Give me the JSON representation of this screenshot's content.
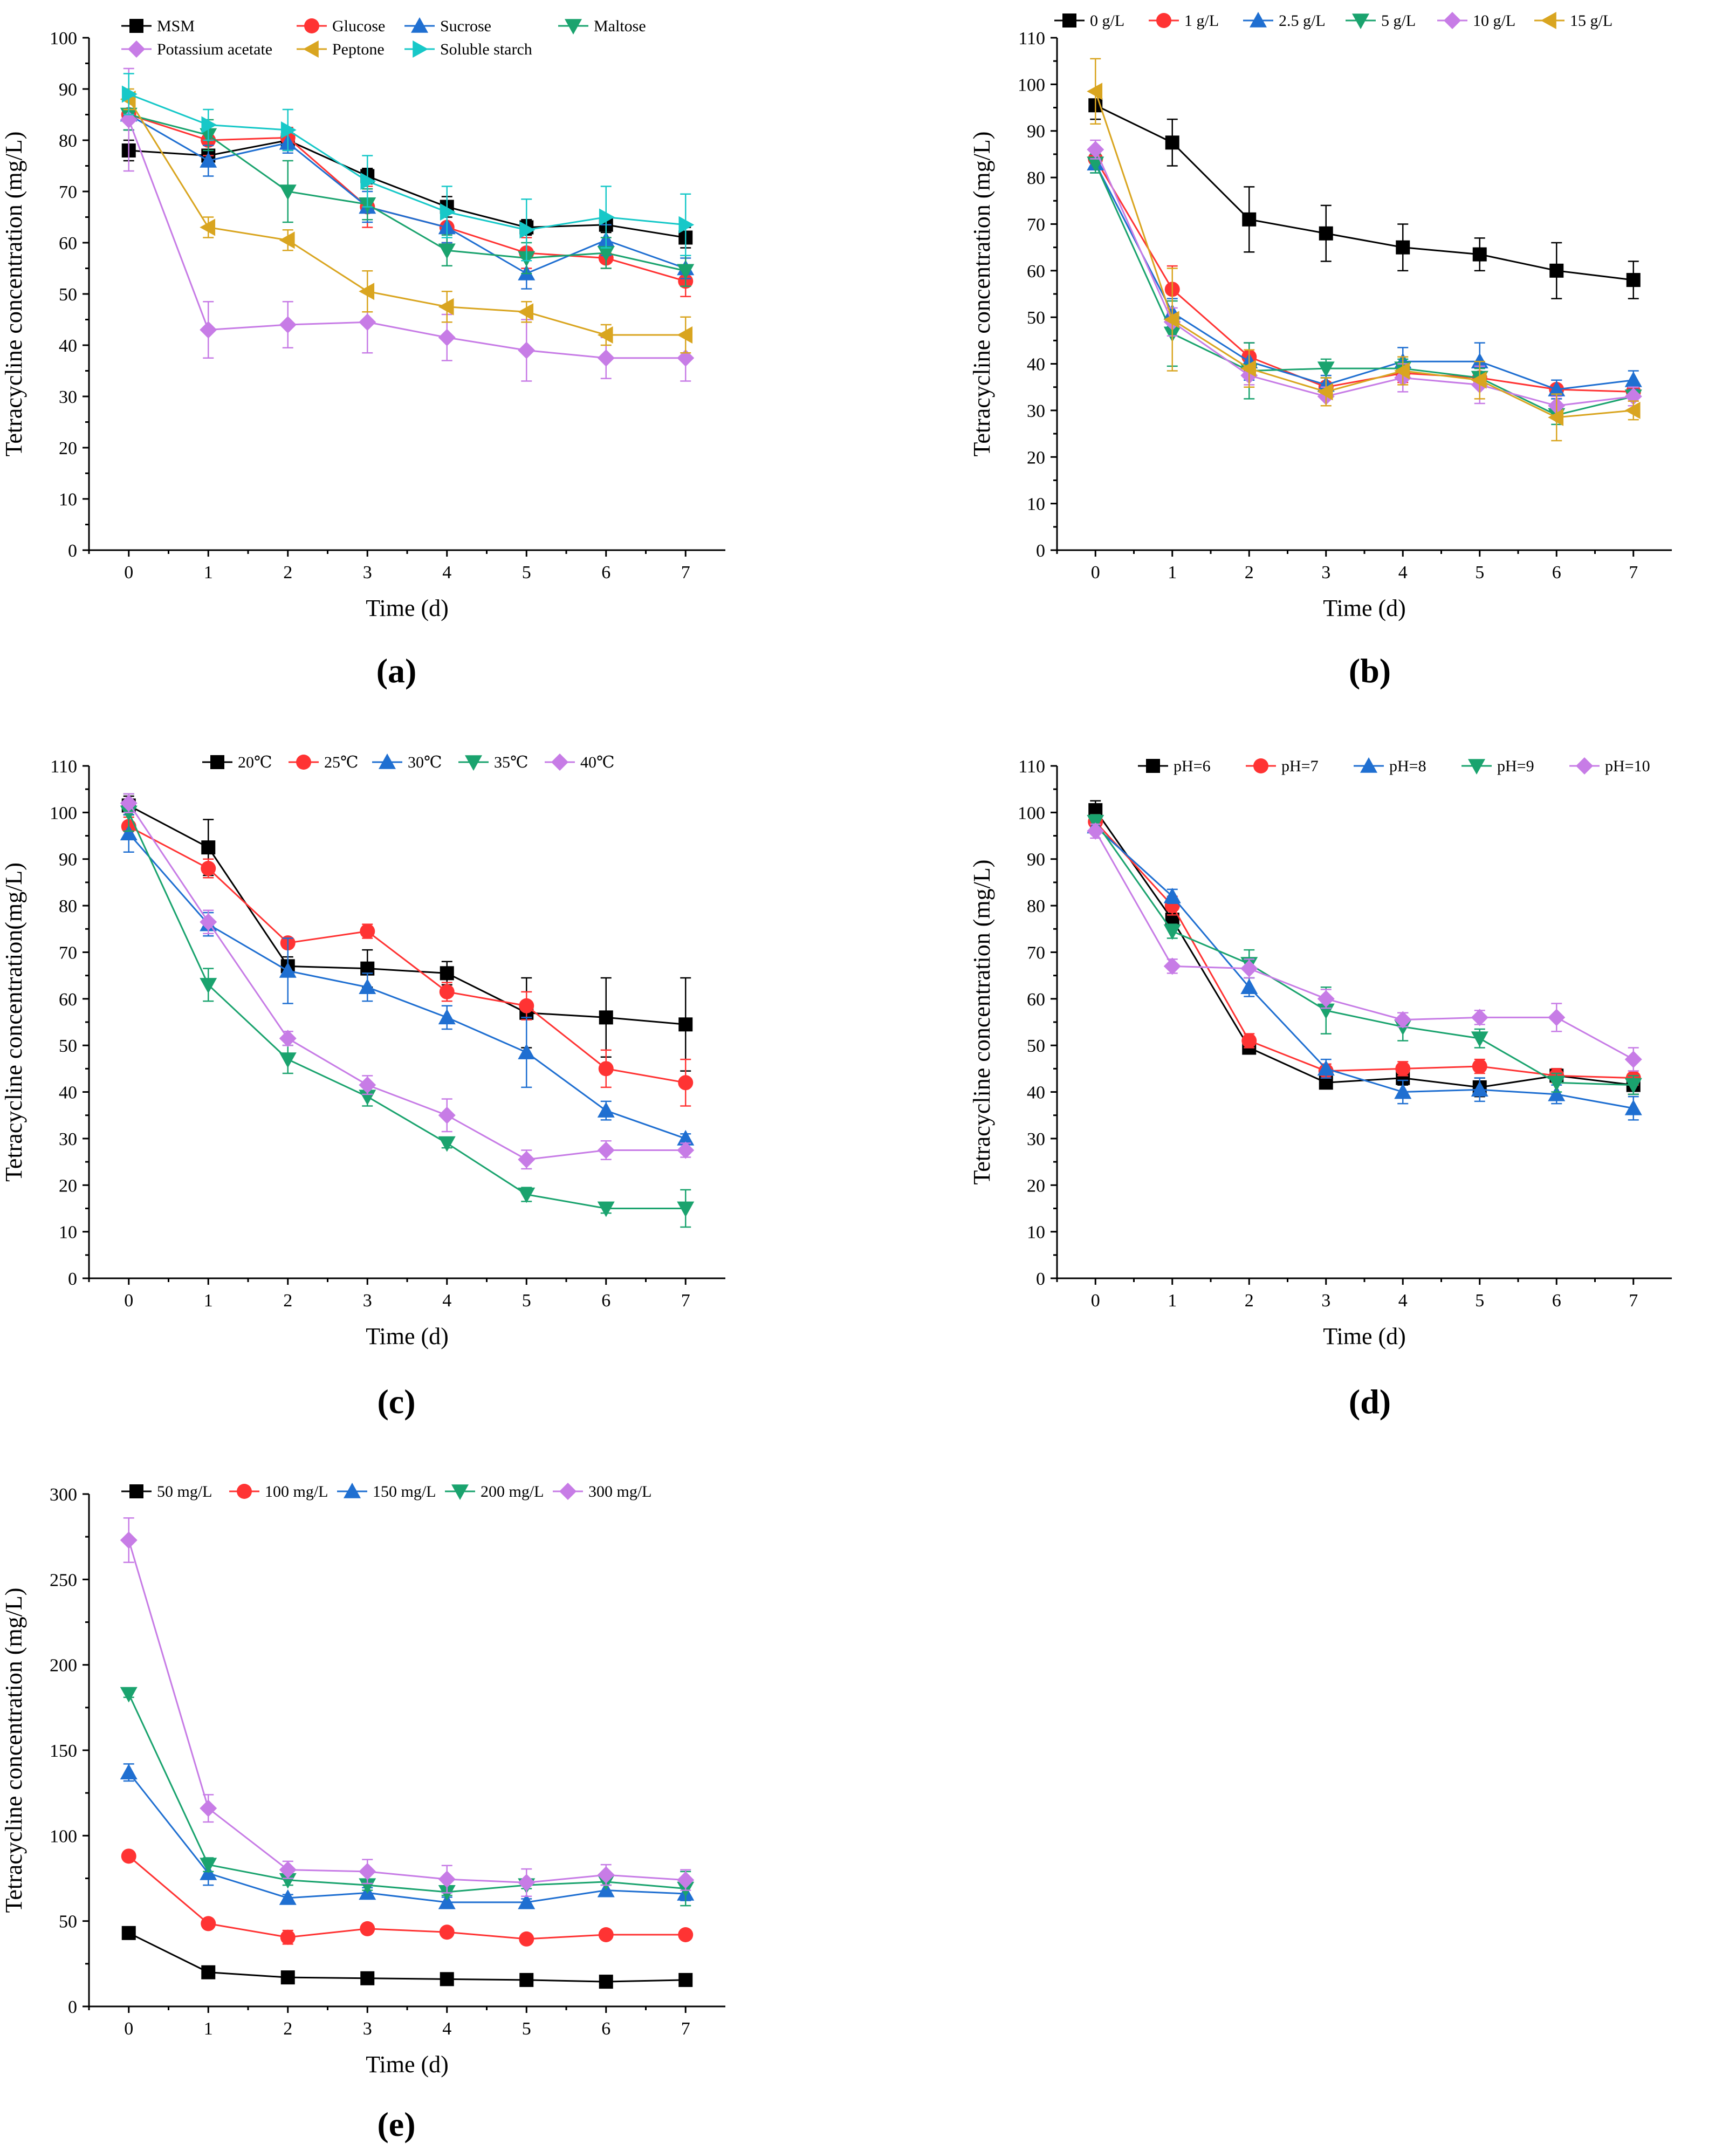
{
  "chart_data": [
    {
      "id": "a",
      "type": "line",
      "label": "(a)",
      "xlabel": "Time (d)",
      "ylabel": "Tetracycline concentration (mg/L)",
      "x": [
        0,
        1,
        2,
        3,
        4,
        5,
        6,
        7
      ],
      "xlim": [
        -0.5,
        7.5
      ],
      "ylim": [
        0,
        100
      ],
      "ystep": 10,
      "series": [
        {
          "name": "MSM",
          "color": "#000000",
          "marker": "square",
          "values": [
            78,
            77,
            80,
            73,
            67,
            63,
            63.5,
            61
          ],
          "err": [
            2,
            2,
            2,
            1.5,
            2,
            1.5,
            1.5,
            2
          ]
        },
        {
          "name": "Glucose",
          "color": "#ff3333",
          "marker": "circle",
          "values": [
            85,
            80,
            80.5,
            67,
            63,
            58,
            57,
            52.5
          ],
          "err": [
            3,
            3,
            2,
            4,
            3,
            3,
            2,
            3
          ]
        },
        {
          "name": "Sucrose",
          "color": "#1f6fd1",
          "marker": "triangle-up",
          "values": [
            85,
            76,
            79.5,
            67,
            63,
            54,
            60.5,
            55
          ],
          "err": [
            3,
            3,
            2,
            3,
            3,
            3,
            3,
            2
          ]
        },
        {
          "name": "Maltose",
          "color": "#1aa36e",
          "marker": "triangle-down",
          "values": [
            85,
            81,
            70,
            67.5,
            58.5,
            57,
            58,
            54.5
          ],
          "err": [
            3,
            3,
            6,
            3,
            3,
            3,
            3,
            3
          ]
        },
        {
          "name": "Potassium acetate",
          "color": "#c77ce6",
          "marker": "diamond",
          "values": [
            84,
            43,
            44,
            44.5,
            41.5,
            39,
            37.5,
            37.5
          ],
          "err": [
            10,
            5.5,
            4.5,
            6,
            4.5,
            6,
            4,
            4.5
          ]
        },
        {
          "name": "Peptone",
          "color": "#d9a520",
          "marker": "triangle-left",
          "values": [
            88,
            63,
            60.5,
            50.5,
            47.5,
            46.5,
            42,
            42
          ],
          "err": [
            2,
            2,
            2,
            4,
            3,
            2,
            2,
            3.5
          ]
        },
        {
          "name": "Soluble starch",
          "color": "#17c8c8",
          "marker": "triangle-right",
          "values": [
            89,
            83,
            82,
            72,
            66,
            62.5,
            65,
            63.5
          ],
          "err": [
            4,
            3,
            4,
            5,
            5,
            6,
            6,
            6
          ]
        }
      ]
    },
    {
      "id": "b",
      "type": "line",
      "label": "(b)",
      "xlabel": "Time (d)",
      "ylabel": "Tetracycline concentration (mg/L)",
      "x": [
        0,
        1,
        2,
        3,
        4,
        5,
        6,
        7
      ],
      "xlim": [
        -0.5,
        7.5
      ],
      "ylim": [
        0,
        110
      ],
      "ystep": 10,
      "series": [
        {
          "name": "0 g/L",
          "color": "#000000",
          "marker": "square",
          "values": [
            95.5,
            87.5,
            71,
            68,
            65,
            63.5,
            60,
            58
          ],
          "err": [
            3,
            5,
            7,
            6,
            5,
            3.5,
            6,
            4
          ]
        },
        {
          "name": "1 g/L",
          "color": "#ff3333",
          "marker": "circle",
          "values": [
            84,
            56,
            41.5,
            35,
            38,
            37,
            34.5,
            34
          ],
          "err": [
            2,
            5,
            3,
            2,
            2,
            2,
            2,
            2
          ]
        },
        {
          "name": "2.5 g/L",
          "color": "#1f6fd1",
          "marker": "triangle-up",
          "values": [
            83,
            51,
            40.5,
            35.5,
            40.5,
            40.5,
            34.5,
            36.5
          ],
          "err": [
            2,
            3,
            4,
            2,
            3,
            4,
            2,
            2
          ]
        },
        {
          "name": "5 g/L",
          "color": "#1aa36e",
          "marker": "triangle-down",
          "values": [
            83,
            46.5,
            38.5,
            39,
            39,
            37,
            29,
            33
          ],
          "err": [
            2,
            7,
            6,
            2,
            2,
            2,
            2,
            2
          ]
        },
        {
          "name": "10 g/L",
          "color": "#c77ce6",
          "marker": "diamond",
          "values": [
            86,
            49,
            37.5,
            33,
            37,
            35.5,
            31,
            33
          ],
          "err": [
            2,
            3,
            2,
            2,
            3,
            4,
            2,
            2
          ]
        },
        {
          "name": "15 g/L",
          "color": "#d9a520",
          "marker": "triangle-left",
          "values": [
            98.5,
            49.5,
            39,
            34,
            38.5,
            36.5,
            28.5,
            30
          ],
          "err": [
            7,
            11,
            4,
            3,
            3,
            4,
            5,
            2
          ]
        }
      ]
    },
    {
      "id": "c",
      "type": "line",
      "label": "(c)",
      "xlabel": "Time (d)",
      "ylabel": "Tetracycline concentration(mg/L)",
      "x": [
        0,
        1,
        2,
        3,
        4,
        5,
        6,
        7
      ],
      "xlim": [
        -0.5,
        7.5
      ],
      "ylim": [
        0,
        110
      ],
      "ystep": 10,
      "series": [
        {
          "name": "20℃",
          "color": "#000000",
          "marker": "square",
          "values": [
            101.5,
            92.5,
            67,
            66.5,
            65.5,
            57,
            56,
            54.5
          ],
          "err": [
            2,
            6,
            2,
            4,
            2.5,
            7.5,
            8.5,
            10
          ]
        },
        {
          "name": "25℃",
          "color": "#ff3333",
          "marker": "circle",
          "values": [
            97,
            88,
            72,
            74.5,
            61.5,
            58.5,
            45,
            42
          ],
          "err": [
            2,
            2,
            1,
            1.5,
            2,
            3,
            4,
            5
          ]
        },
        {
          "name": "30℃",
          "color": "#1f6fd1",
          "marker": "triangle-up",
          "values": [
            95.5,
            76,
            66,
            62.5,
            56,
            48.5,
            36,
            30
          ],
          "err": [
            4,
            2.5,
            7,
            3,
            2.5,
            7.5,
            2,
            1
          ]
        },
        {
          "name": "35℃",
          "color": "#1aa36e",
          "marker": "triangle-down",
          "values": [
            100,
            63,
            47,
            39,
            29,
            18,
            15,
            15
          ],
          "err": [
            4,
            3.5,
            3,
            2,
            1,
            1.5,
            1,
            4
          ]
        },
        {
          "name": "40℃",
          "color": "#c77ce6",
          "marker": "diamond",
          "values": [
            102,
            76.5,
            51.5,
            41.5,
            35,
            25.5,
            27.5,
            27.5
          ],
          "err": [
            2,
            2.5,
            1.5,
            2,
            3.5,
            2,
            2,
            1.5
          ]
        }
      ]
    },
    {
      "id": "d",
      "type": "line",
      "label": "(d)",
      "xlabel": "Time (d)",
      "ylabel": "Tetracycline concentration (mg/L)",
      "x": [
        0,
        1,
        2,
        3,
        4,
        5,
        6,
        7
      ],
      "xlim": [
        -0.5,
        7.5
      ],
      "ylim": [
        0,
        110
      ],
      "ystep": 10,
      "series": [
        {
          "name": "pH=6",
          "color": "#000000",
          "marker": "square",
          "values": [
            100.5,
            77,
            49.5,
            42,
            43,
            41,
            43.5,
            41.5
          ],
          "err": [
            2,
            2,
            1,
            1,
            1.5,
            2,
            1.5,
            2
          ]
        },
        {
          "name": "pH=7",
          "color": "#ff3333",
          "marker": "circle",
          "values": [
            98,
            80,
            51,
            44.5,
            45,
            45.5,
            43.5,
            43
          ],
          "err": [
            1.5,
            2,
            1.5,
            1.5,
            1.5,
            1.5,
            1.5,
            1.5
          ]
        },
        {
          "name": "pH=8",
          "color": "#1f6fd1",
          "marker": "triangle-up",
          "values": [
            97,
            82,
            62.5,
            45,
            40,
            40.5,
            39.5,
            36.5
          ],
          "err": [
            1.5,
            1.5,
            2,
            2,
            2.5,
            2.5,
            2,
            2.5
          ]
        },
        {
          "name": "pH=9",
          "color": "#1aa36e",
          "marker": "triangle-down",
          "values": [
            98,
            74.5,
            67.5,
            57.5,
            54,
            51.5,
            42,
            41.5
          ],
          "err": [
            1.5,
            1.5,
            3,
            5,
            3,
            2,
            2,
            2
          ]
        },
        {
          "name": "pH=10",
          "color": "#c77ce6",
          "marker": "diamond",
          "values": [
            96,
            67,
            66.5,
            60,
            55.5,
            56,
            56,
            47
          ],
          "err": [
            1.5,
            1.5,
            2,
            2,
            1.5,
            1.5,
            3,
            2.5
          ]
        }
      ]
    },
    {
      "id": "e",
      "type": "line",
      "label": "(e)",
      "xlabel": "Time (d)",
      "ylabel": "Tetracycline concentration (mg/L)",
      "x": [
        0,
        1,
        2,
        3,
        4,
        5,
        6,
        7
      ],
      "xlim": [
        -0.5,
        7.5
      ],
      "ylim": [
        0,
        300
      ],
      "ystep": 50,
      "series": [
        {
          "name": "50 mg/L",
          "color": "#000000",
          "marker": "square",
          "values": [
            43,
            20,
            17,
            16.5,
            16,
            15.5,
            14.5,
            15.5
          ],
          "err": [
            1,
            1,
            1,
            1,
            1,
            1,
            1,
            1
          ]
        },
        {
          "name": "100 mg/L",
          "color": "#ff3333",
          "marker": "circle",
          "values": [
            88,
            48.5,
            40.5,
            45.5,
            43.5,
            39.5,
            42,
            42
          ],
          "err": [
            2,
            2,
            4,
            2,
            2,
            2,
            2,
            2
          ]
        },
        {
          "name": "150 mg/L",
          "color": "#1f6fd1",
          "marker": "triangle-up",
          "values": [
            137,
            78,
            63.5,
            66.5,
            61,
            61,
            68,
            66
          ],
          "err": [
            5,
            7,
            2,
            3,
            3,
            2,
            3,
            4
          ]
        },
        {
          "name": "200 mg/L",
          "color": "#1aa36e",
          "marker": "triangle-down",
          "values": [
            183,
            83,
            74,
            71,
            67,
            71,
            73,
            69
          ],
          "err": [
            2,
            4,
            3,
            3,
            2,
            2,
            2,
            10
          ]
        },
        {
          "name": "300 mg/L",
          "color": "#c77ce6",
          "marker": "diamond",
          "values": [
            273,
            116,
            80,
            79,
            74.5,
            72.5,
            77,
            74
          ],
          "err": [
            13,
            8,
            5,
            7,
            8,
            8,
            6,
            6
          ]
        }
      ]
    }
  ]
}
